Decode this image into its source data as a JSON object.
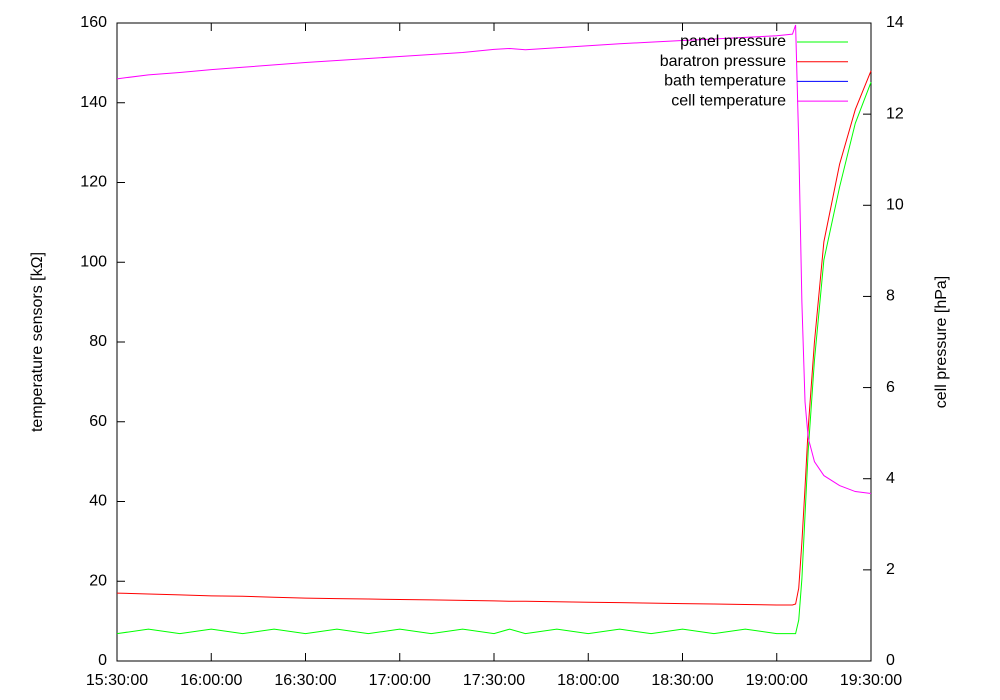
{
  "chart_data": {
    "type": "line",
    "x": [
      "15:30:00",
      "15:40:00",
      "15:50:00",
      "16:00:00",
      "16:10:00",
      "16:20:00",
      "16:30:00",
      "16:40:00",
      "16:50:00",
      "17:00:00",
      "17:10:00",
      "17:20:00",
      "17:30:00",
      "17:35:00",
      "17:40:00",
      "17:50:00",
      "18:00:00",
      "18:10:00",
      "18:20:00",
      "18:30:00",
      "18:40:00",
      "18:50:00",
      "19:00:00",
      "19:05:00",
      "19:06:00",
      "19:07:00",
      "19:08:00",
      "19:09:00",
      "19:10:00",
      "19:12:00",
      "19:15:00",
      "19:20:00",
      "19:25:00",
      "19:30:00"
    ],
    "series": [
      {
        "name": "panel pressure",
        "color": "#00ff00",
        "axis": "y2",
        "values": [
          0.6,
          0.7,
          0.6,
          0.7,
          0.6,
          0.7,
          0.6,
          0.7,
          0.6,
          0.7,
          0.6,
          0.7,
          0.6,
          0.7,
          0.6,
          0.7,
          0.6,
          0.7,
          0.6,
          0.7,
          0.6,
          0.7,
          0.6,
          0.6,
          0.6,
          0.9,
          1.8,
          3.2,
          4.6,
          6.6,
          8.8,
          10.4,
          11.8,
          12.7
        ]
      },
      {
        "name": "baratron pressure",
        "color": "#ff0000",
        "axis": "y2",
        "values": [
          1.49,
          1.47,
          1.45,
          1.43,
          1.42,
          1.4,
          1.38,
          1.37,
          1.36,
          1.35,
          1.34,
          1.33,
          1.32,
          1.31,
          1.31,
          1.3,
          1.29,
          1.28,
          1.27,
          1.26,
          1.25,
          1.24,
          1.23,
          1.23,
          1.25,
          1.6,
          2.6,
          3.8,
          5.1,
          7,
          9.2,
          10.9,
          12.1,
          12.95
        ]
      },
      {
        "name": "bath temperature",
        "color": "#0000ff",
        "values": [
          null,
          null,
          null,
          null,
          null,
          null,
          null,
          null,
          null,
          null,
          null,
          null,
          null,
          null,
          null,
          null,
          null,
          null,
          null,
          null,
          null,
          null,
          null,
          null,
          null,
          null,
          null,
          null,
          null,
          null,
          null,
          null,
          null,
          null
        ]
      },
      {
        "name": "cell temperature",
        "color": "#ff00ff",
        "values": [
          146,
          147,
          147.6,
          148.3,
          148.9,
          149.5,
          150.1,
          150.6,
          151.1,
          151.6,
          152.1,
          152.6,
          153.4,
          153.6,
          153.3,
          153.8,
          154.3,
          154.8,
          155.2,
          155.6,
          156,
          156.4,
          156.8,
          157.2,
          159.5,
          130,
          90,
          65,
          56,
          50,
          46.5,
          44,
          42.5,
          42
        ]
      }
    ],
    "ylabel": "temperature sensors [kΩ]",
    "y2label": "cell pressure [hPa]",
    "xlim": [
      "15:30:00",
      "19:30:00"
    ],
    "xticks": [
      "15:30:00",
      "16:00:00",
      "16:30:00",
      "17:00:00",
      "17:30:00",
      "18:00:00",
      "18:30:00",
      "19:00:00",
      "19:30:00"
    ],
    "ylim": [
      0,
      160
    ],
    "yticks": [
      0,
      20,
      40,
      60,
      80,
      100,
      120,
      140,
      160
    ],
    "y2lim": [
      0,
      14
    ],
    "y2ticks": [
      0,
      2,
      4,
      6,
      8,
      10,
      12,
      14
    ],
    "legend": "top-right"
  }
}
